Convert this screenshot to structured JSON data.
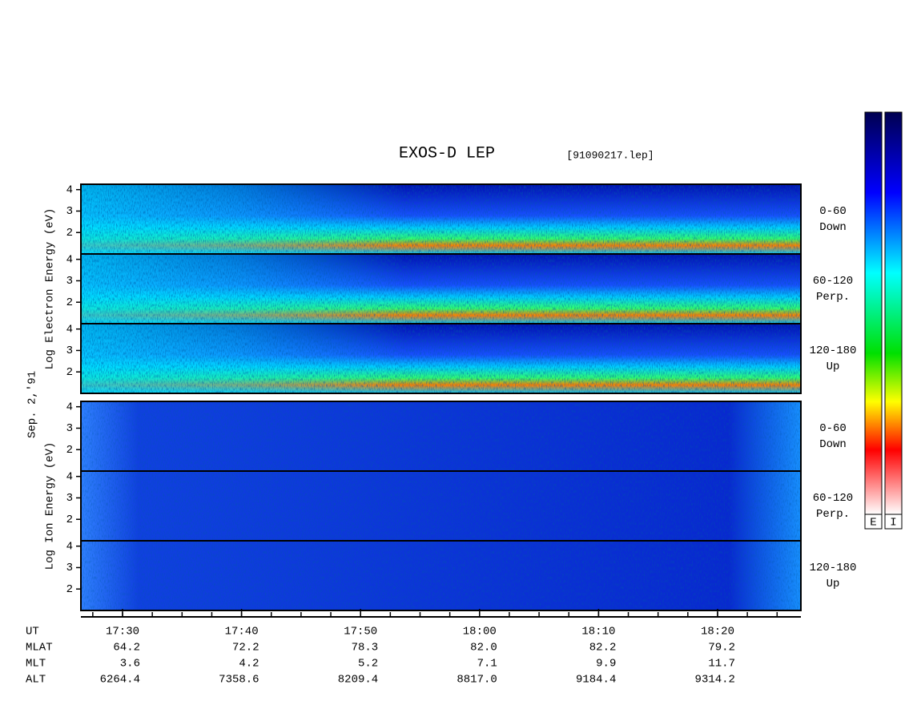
{
  "title": "EXOS-D LEP",
  "file": "[91090217.lep]",
  "date": "Sep. 2,'91",
  "groups": [
    {
      "label": "Log Electron Energy (eV)",
      "kind": "electron",
      "panels": [
        {
          "pitch": "0-60",
          "direction": "Down"
        },
        {
          "pitch": "60-120",
          "direction": "Perp."
        },
        {
          "pitch": "120-180",
          "direction": "Up"
        }
      ]
    },
    {
      "label": "Log Ion Energy (eV)",
      "kind": "ion",
      "panels": [
        {
          "pitch": "0-60",
          "direction": "Down"
        },
        {
          "pitch": "60-120",
          "direction": "Perp."
        },
        {
          "pitch": "120-180",
          "direction": "Up"
        }
      ]
    }
  ],
  "energy_axis": {
    "lim": [
      1,
      4.25
    ],
    "ticks": [
      2,
      3,
      4
    ]
  },
  "time_axis": {
    "lim": [
      26.5,
      87
    ],
    "ticks": [
      {
        "value": 30,
        "label": "17:30"
      },
      {
        "value": 40,
        "label": "17:40"
      },
      {
        "value": 50,
        "label": "17:50"
      },
      {
        "value": 60,
        "label": "18:00"
      },
      {
        "value": 70,
        "label": "18:10"
      },
      {
        "value": 80,
        "label": "18:20"
      }
    ]
  },
  "ephemeris": {
    "row_labels": [
      "UT",
      "MLAT",
      "MLT",
      "ALT"
    ],
    "rows": [
      [
        "64.2",
        "72.2",
        "78.3",
        "82.0",
        "82.2",
        "79.2"
      ],
      [
        "3.6",
        "4.2",
        "5.2",
        "7.1",
        "9.9",
        "11.7"
      ],
      [
        "6264.4",
        "7358.6",
        "8209.4",
        "8817.0",
        "9184.4",
        "9314.2"
      ]
    ]
  },
  "colorbars": [
    "E",
    "I"
  ]
}
